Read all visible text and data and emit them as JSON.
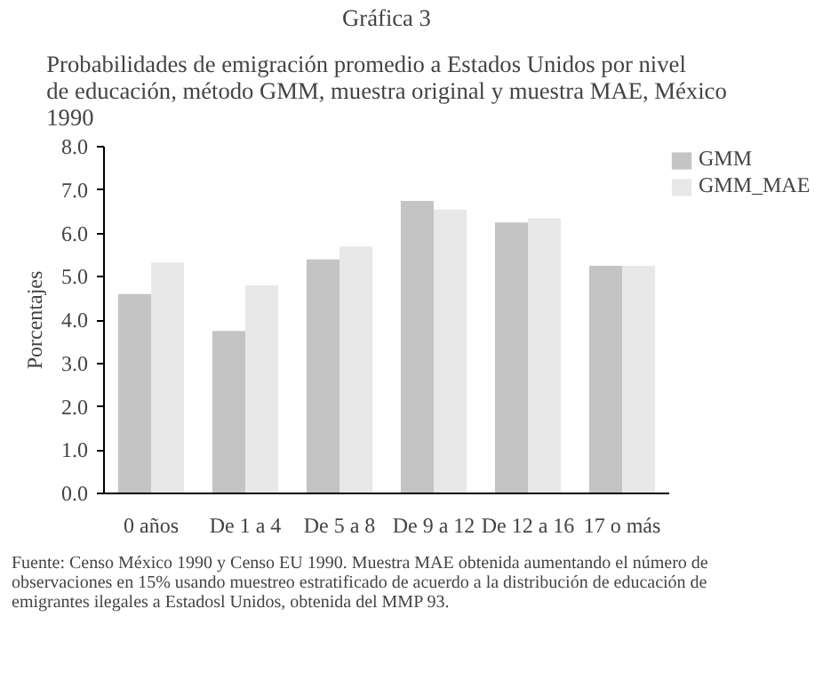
{
  "chart_data": {
    "type": "bar",
    "title": "Gráfica 3",
    "subtitle": "Probabilidades de emigración promedio a  Estados Unidos por nivel de educación, método GMM, muestra original y muestra MAE, México 1990",
    "ylabel": "Porcentajes",
    "categories": [
      "0 años",
      "De 1 a 4",
      "De 5 a 8",
      "De 9 a 12",
      "De 12 a 16",
      "17 o más"
    ],
    "series": [
      {
        "name": "GMM",
        "color": "#c4c4c4",
        "values": [
          4.6,
          3.75,
          5.4,
          6.75,
          6.25,
          5.25
        ]
      },
      {
        "name": "GMM_MAE",
        "color": "#e8e8e8",
        "values": [
          5.33,
          4.8,
          5.7,
          6.55,
          6.35,
          5.25
        ]
      }
    ],
    "ylim": [
      0,
      8
    ],
    "yticks": [
      {
        "value": 0,
        "label": "0.0"
      },
      {
        "value": 1,
        "label": "1.0"
      },
      {
        "value": 2,
        "label": "2.0"
      },
      {
        "value": 3,
        "label": "3.0"
      },
      {
        "value": 4,
        "label": "4.0"
      },
      {
        "value": 5,
        "label": "5.0"
      },
      {
        "value": 6,
        "label": "6.0"
      },
      {
        "value": 7,
        "label": "7.0"
      },
      {
        "value": 8,
        "label": "8.0"
      }
    ],
    "legend": "top right",
    "grid": false,
    "annotations": [
      "Fuente: Censo México 1990 y Censo EU 1990. Muestra MAE obtenida aumentando el número de observaciones en 15% usando muestreo estratificado de acuerdo a la distribución de educación de emigrantes ilegales a Estadosl Unidos, obtenida del MMP 93."
    ]
  }
}
